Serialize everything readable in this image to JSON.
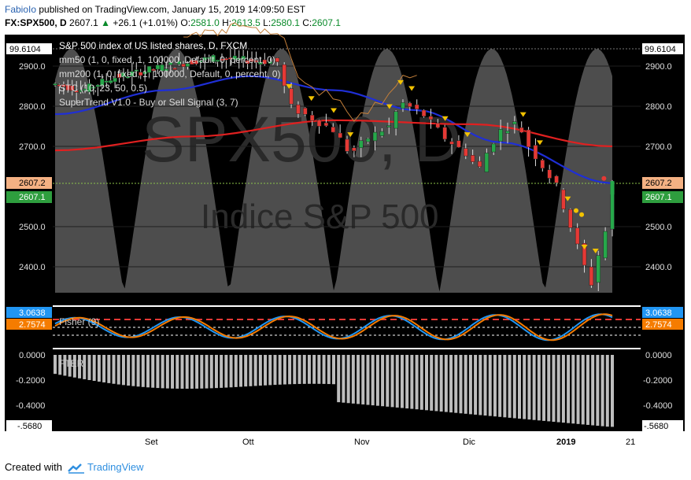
{
  "header": {
    "author": "FabioIo",
    "published": "published on TradingView.com, January 15, 2019 14:09:50 EST",
    "symbol": "FX:SPX500, D",
    "last": "2607.1",
    "change": "+26.1 (+1.01%)",
    "o_label": "O:",
    "o_value": "2581.0",
    "h_label": "H:",
    "h_value": "2613.5",
    "l_label": "L:",
    "l_value": "2580.1",
    "c_label": "C:",
    "c_value": "2607.1"
  },
  "legend": {
    "line1": "S&P 500 index of US listed shares, D, FXCM",
    "line2": "mm50 (1, 0, fixed, 1, 100000, Default, 0, percent, 0)",
    "line3": "mm200 (1, 0, fixed, 1, 100000, Default, 0, percent, 0)",
    "line4": "STC (10, 23, 50, 0.5)",
    "line5": "SuperTrend V1.0 - Buy or Sell Signal (3, 7)"
  },
  "watermark": {
    "symbol": "SPX500, D",
    "name": "Indice S&P 500"
  },
  "price_axis": {
    "ticks": [
      "2900.0",
      "2800.0",
      "2700.0",
      "2500.0",
      "2400.0"
    ],
    "top_value": "99.6104",
    "tag_ma": "2607.2",
    "tag_last": "2607.1"
  },
  "fisher_pane": {
    "label": "Fisher (9)",
    "tag_blue": "3.0638",
    "tag_orange": "2.7574"
  },
  "fter_pane": {
    "label": "FTER",
    "ticks": [
      "0.0000",
      "-0.2000",
      "-0.4000"
    ],
    "bottom_tag": "-.5680"
  },
  "time_axis": {
    "labels": [
      "Set",
      "Ott",
      "Nov",
      "Dic",
      "2019",
      "21"
    ]
  },
  "footer": {
    "created": "Created with",
    "brand": "TradingView"
  },
  "colors": {
    "bull": "#26a84a",
    "bear": "#e53935",
    "ma50": "#1f2fd6",
    "ma200": "#e02020",
    "stc_band": "#9a9a9a",
    "fisher_blue": "#2196f3",
    "fisher_orange": "#f57c00"
  },
  "chart_data": {
    "type": "candlestick",
    "title": "S&P 500 index of US listed shares, D, FXCM",
    "ylim": [
      2325,
      2955
    ],
    "x": [
      "Sep",
      "Oct",
      "Nov",
      "Dec",
      "2019"
    ],
    "mm50": [
      {
        "t": 0,
        "v": 2780
      },
      {
        "t": 0.2,
        "v": 2840
      },
      {
        "t": 0.35,
        "v": 2875
      },
      {
        "t": 0.5,
        "v": 2840
      },
      {
        "t": 0.65,
        "v": 2790
      },
      {
        "t": 0.8,
        "v": 2710
      },
      {
        "t": 1,
        "v": 2608
      }
    ],
    "mm200": [
      {
        "t": 0,
        "v": 2690
      },
      {
        "t": 0.25,
        "v": 2725
      },
      {
        "t": 0.5,
        "v": 2765
      },
      {
        "t": 0.75,
        "v": 2755
      },
      {
        "t": 1,
        "v": 2700
      }
    ],
    "last_close": 2607.1,
    "fisher_last": [
      3.0638,
      2.7574
    ],
    "fter_last": -0.568
  }
}
